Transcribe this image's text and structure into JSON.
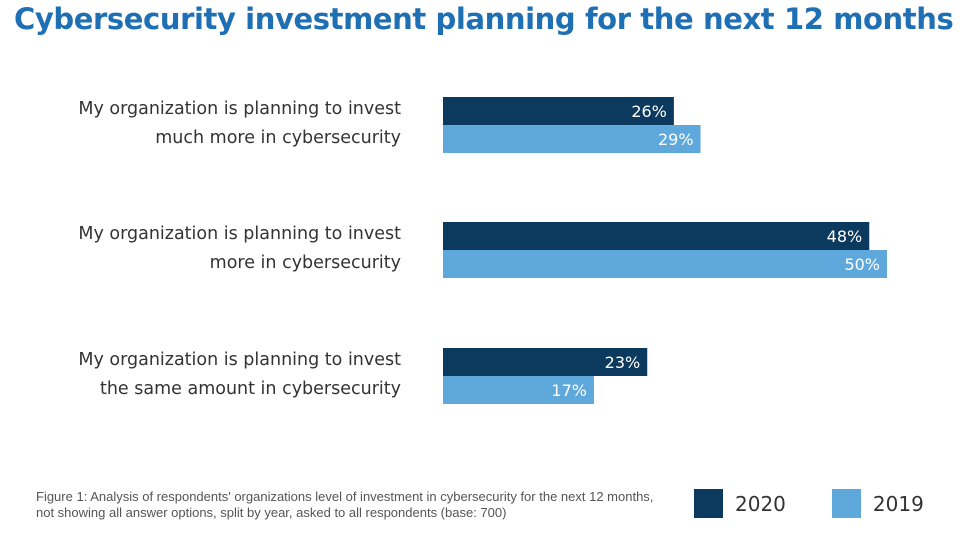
{
  "chart_data": {
    "type": "bar",
    "orientation": "horizontal",
    "title": "Cybersecurity investment planning for the next 12 months",
    "categories": [
      [
        "My organization is planning to invest",
        "much more in cybersecurity"
      ],
      [
        "My organization is planning to invest",
        "more in cybersecurity"
      ],
      [
        "My organization is planning to invest",
        "the same amount in cybersecurity"
      ]
    ],
    "series": [
      {
        "name": "2020",
        "color": "#0b3a5e",
        "values": [
          26,
          48,
          23
        ],
        "labels": [
          "26%",
          "48%",
          "23%"
        ]
      },
      {
        "name": "2019",
        "color": "#5ea8dc",
        "values": [
          29,
          50,
          17
        ],
        "labels": [
          "29%",
          "50%",
          "17%"
        ]
      }
    ],
    "xlim": [
      0,
      58
    ],
    "grid": false,
    "legend": "bottom-right",
    "caption": "Figure 1: Analysis of respondents' organizations level of investment in cybersecurity for the next 12 months, not showing all answer options, split by year, asked to all respondents (base: 700)"
  }
}
